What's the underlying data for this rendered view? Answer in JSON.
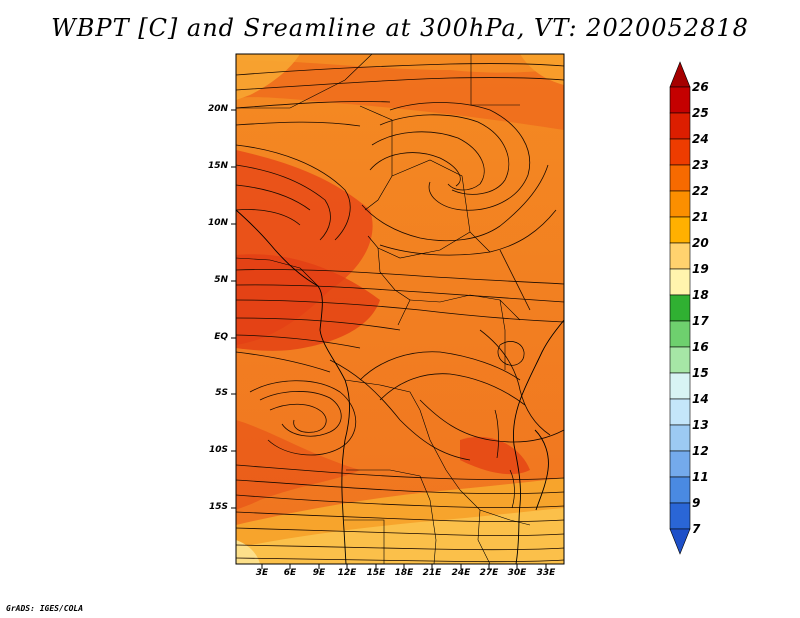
{
  "title": "WBPT [C] and Sreamline at 300hPa, VT: 2020052818",
  "credit": "GrADS: IGES/COLA",
  "map": {
    "lat_labels": [
      "20N",
      "15N",
      "10N",
      "5N",
      "EQ",
      "5S",
      "10S",
      "15S"
    ],
    "lon_labels": [
      "3E",
      "6E",
      "9E",
      "12E",
      "15E",
      "18E",
      "21E",
      "24E",
      "27E",
      "30E",
      "33E"
    ]
  },
  "colorbar": {
    "labels": [
      "26",
      "25",
      "24",
      "23",
      "22",
      "21",
      "20",
      "19",
      "18",
      "17",
      "16",
      "15",
      "14",
      "13",
      "12",
      "11",
      "9",
      "7"
    ],
    "colors": [
      "#a50000",
      "#c40000",
      "#dc1e00",
      "#ee3c00",
      "#f76a00",
      "#fb8f00",
      "#ffb000",
      "#ffd26e",
      "#fff4ad",
      "#30b032",
      "#6ed06e",
      "#a6e6a6",
      "#d8f4f4",
      "#c4e6fa",
      "#9ccaf3",
      "#74aaec",
      "#4a8ae2",
      "#2a66d6",
      "#1e50c8"
    ]
  },
  "colors": {
    "field_dominant": "#f0701a",
    "field_warm": "#e84416",
    "field_cool": "#f9b740",
    "streamline": "#1a0a00"
  }
}
